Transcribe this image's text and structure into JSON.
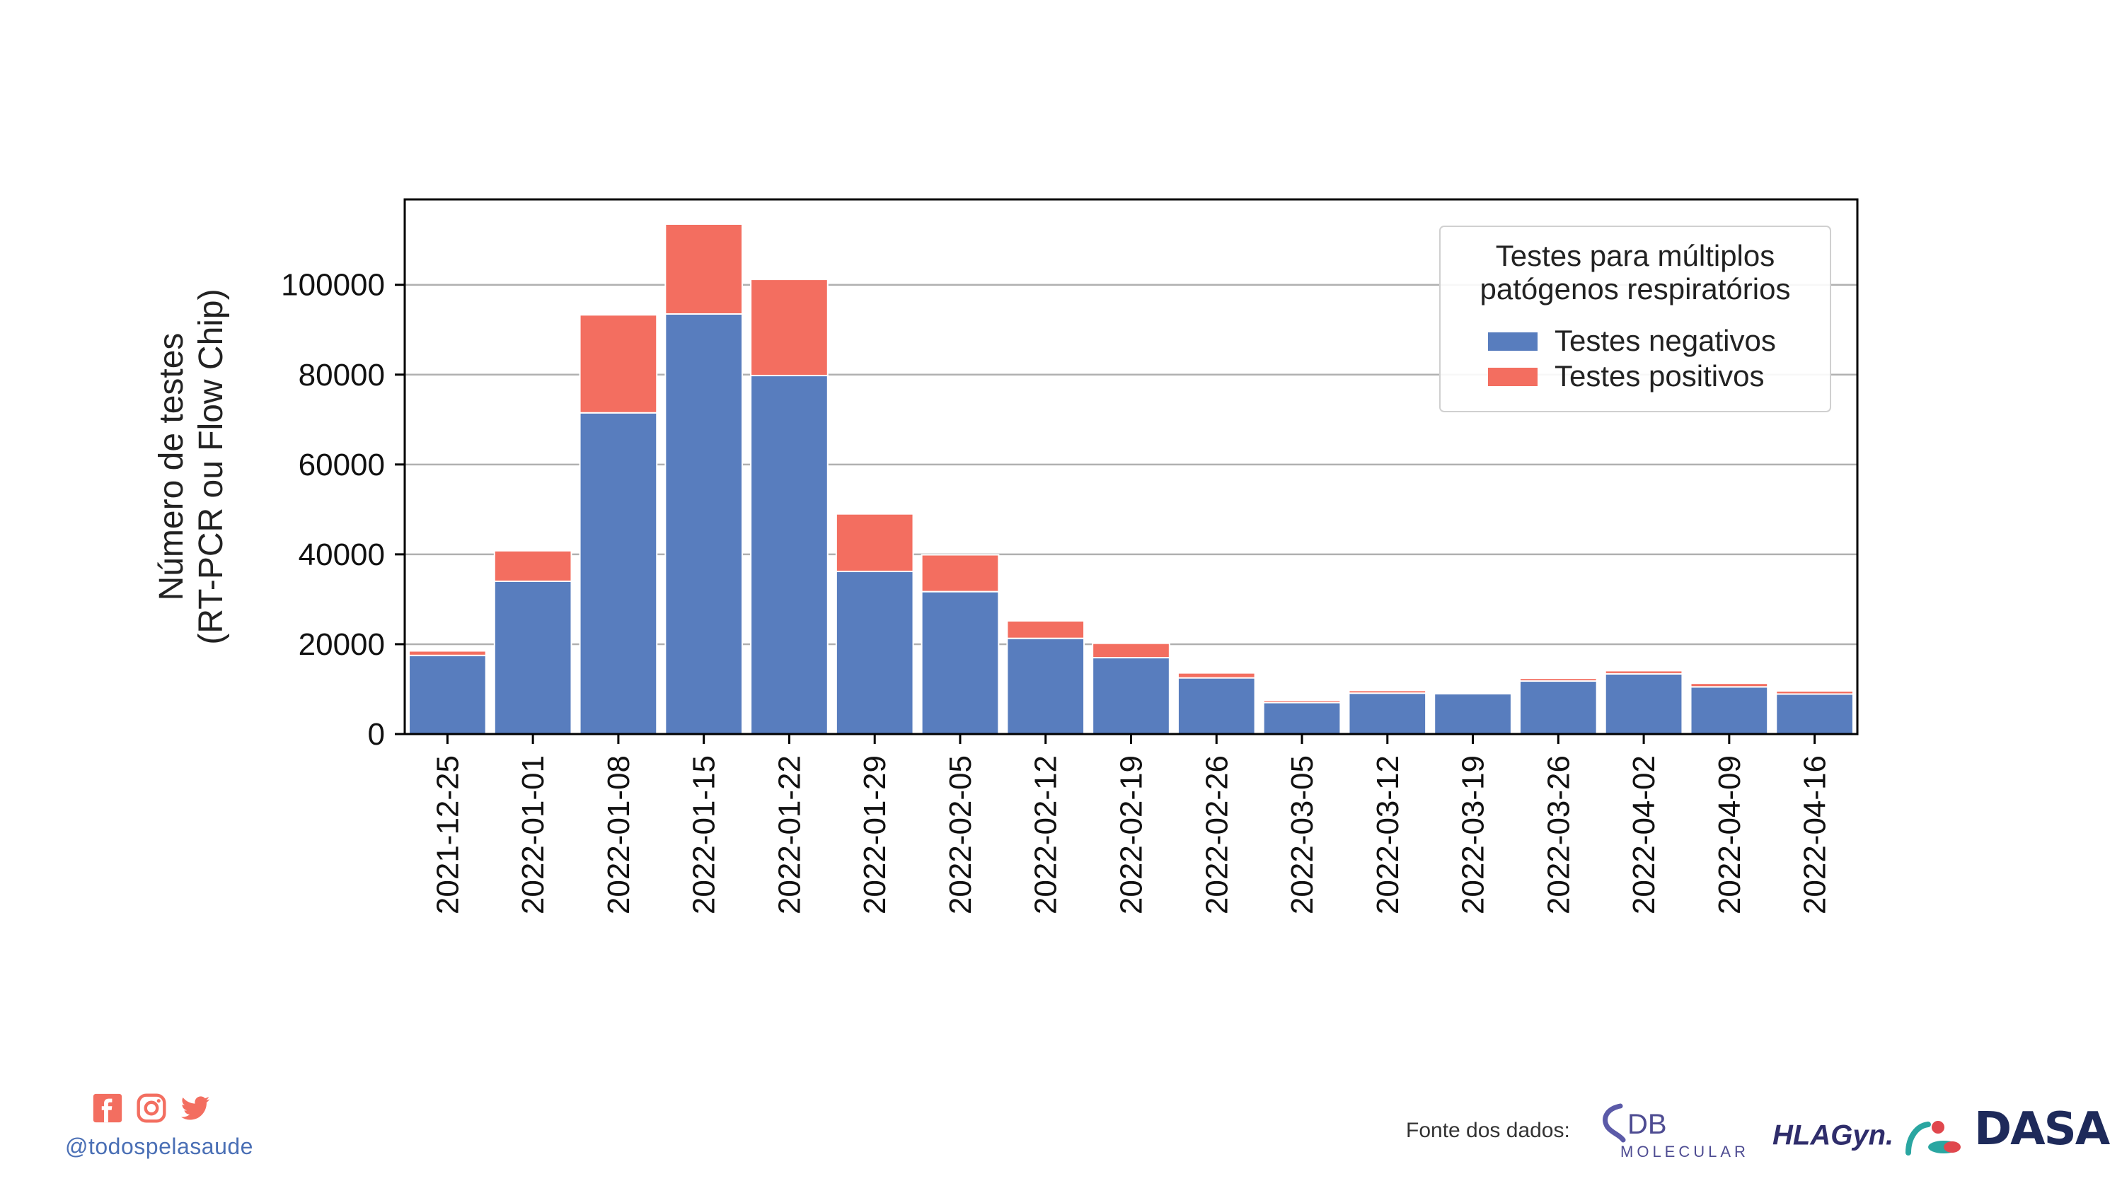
{
  "chart_data": {
    "type": "bar",
    "stacked": true,
    "categories": [
      "2021-12-25",
      "2022-01-01",
      "2022-01-08",
      "2022-01-15",
      "2022-01-22",
      "2022-01-29",
      "2022-02-05",
      "2022-02-12",
      "2022-02-19",
      "2022-02-26",
      "2022-03-05",
      "2022-03-12",
      "2022-03-19",
      "2022-03-26",
      "2022-04-02",
      "2022-04-09",
      "2022-04-16"
    ],
    "series": [
      {
        "name": "Testes negativos",
        "color": "#587dbe",
        "values": [
          17500,
          34000,
          71500,
          93500,
          79800,
          36200,
          31700,
          21300,
          17000,
          12500,
          7000,
          9100,
          9000,
          11800,
          13400,
          10500,
          8900
        ]
      },
      {
        "name": "Testes positivos",
        "color": "#f36e60",
        "values": [
          1000,
          6800,
          21800,
          20000,
          21400,
          12800,
          8200,
          3900,
          3200,
          1100,
          500,
          600,
          300,
          600,
          700,
          800,
          700
        ]
      }
    ],
    "ylabel": "Número de testes\n(RT-PCR ou Flow Chip)",
    "xlabel": "",
    "ylim": [
      0,
      119000
    ],
    "yticks": [
      0,
      20000,
      40000,
      60000,
      80000,
      100000
    ],
    "grid": "horizontal",
    "legend": {
      "title_line1": "Testes para múltiplos",
      "title_line2": "patógenos respiratórios",
      "placement": "top-right"
    }
  },
  "footer": {
    "handle": "@todospelasaude",
    "source_label": "Fonte dos dados:",
    "logos": {
      "db_main": "DB",
      "db_sub": "MOLECULAR",
      "hla": "HLAGyn.",
      "dasa": "DASA"
    },
    "social_icons": [
      "facebook-icon",
      "instagram-icon",
      "twitter-icon"
    ]
  }
}
